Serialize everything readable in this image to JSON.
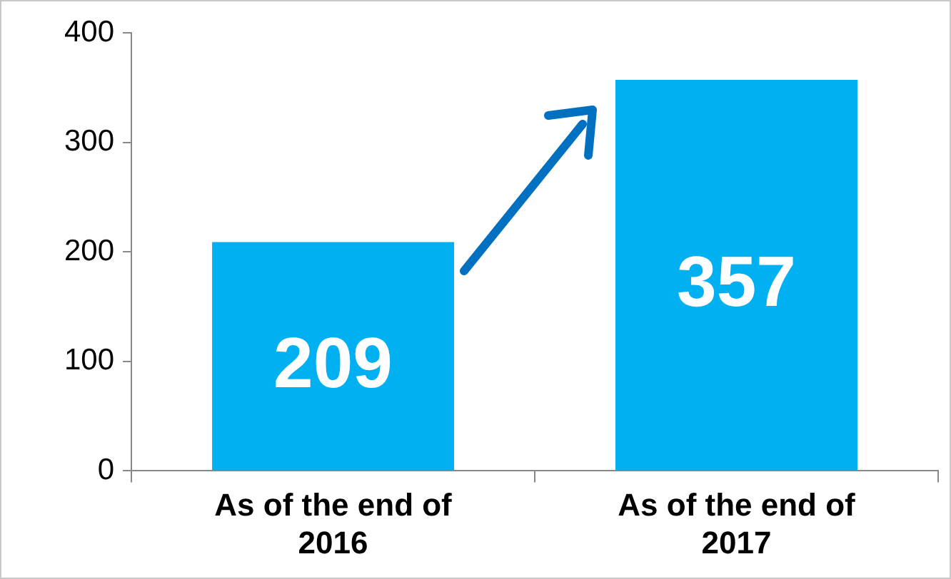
{
  "chart_data": {
    "type": "bar",
    "categories": [
      "As of the end of 2016",
      "As of the end of 2017"
    ],
    "values": [
      209,
      357
    ],
    "color": "#00b0f0",
    "ylim": [
      0,
      400
    ],
    "yticks": [
      0,
      100,
      200,
      300,
      400
    ],
    "grid": false,
    "legend": false,
    "data_labels": true
  }
}
